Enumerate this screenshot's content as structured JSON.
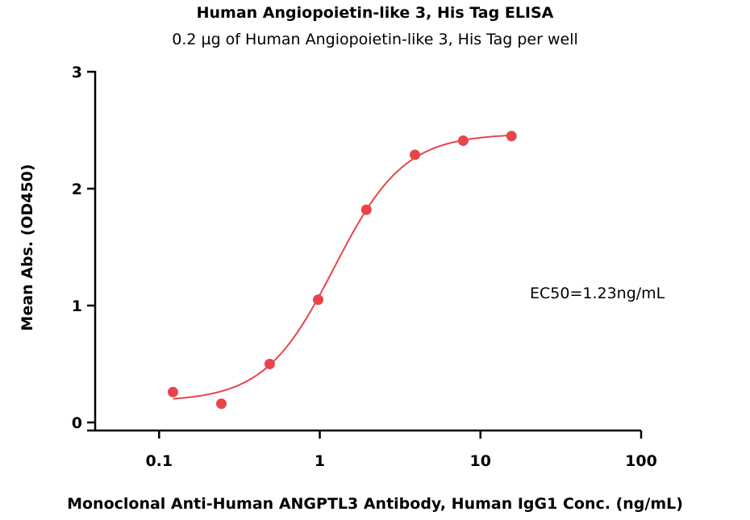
{
  "chart_data": {
    "type": "scatter",
    "title": "Human Angiopoietin-like 3, His Tag ELISA",
    "subtitle": "0.2 µg of Human Angiopoietin-like 3, His Tag per well",
    "xlabel": "Monoclonal Anti-Human ANGPTL3 Antibody, Human IgG1 Conc. (ng/mL)",
    "ylabel": "Mean Abs. (OD450)",
    "xscale": "log",
    "xlim": [
      0.04,
      100
    ],
    "ylim": [
      0,
      3
    ],
    "x_ticks": [
      {
        "value": 0.1,
        "label": "0.1"
      },
      {
        "value": 1,
        "label": "1"
      },
      {
        "value": 10,
        "label": "10"
      },
      {
        "value": 100,
        "label": "100"
      }
    ],
    "y_ticks": [
      {
        "value": 0,
        "label": "0"
      },
      {
        "value": 1,
        "label": "1"
      },
      {
        "value": 2,
        "label": "2"
      },
      {
        "value": 3,
        "label": "3"
      }
    ],
    "grid": false,
    "color": "#e8454b",
    "series": [
      {
        "x": [
          0.122,
          0.244,
          0.488,
          0.977,
          1.95,
          3.91,
          7.81,
          15.6
        ],
        "y": [
          0.26,
          0.16,
          0.5,
          1.05,
          1.82,
          2.29,
          2.41,
          2.45
        ]
      }
    ],
    "fit": {
      "model": "4PL",
      "bottom": 0.18,
      "top": 2.47,
      "ec50": 1.23,
      "hill": 2.0
    },
    "annotations": [
      {
        "text": "EC50=1.23ng/mL"
      }
    ]
  }
}
